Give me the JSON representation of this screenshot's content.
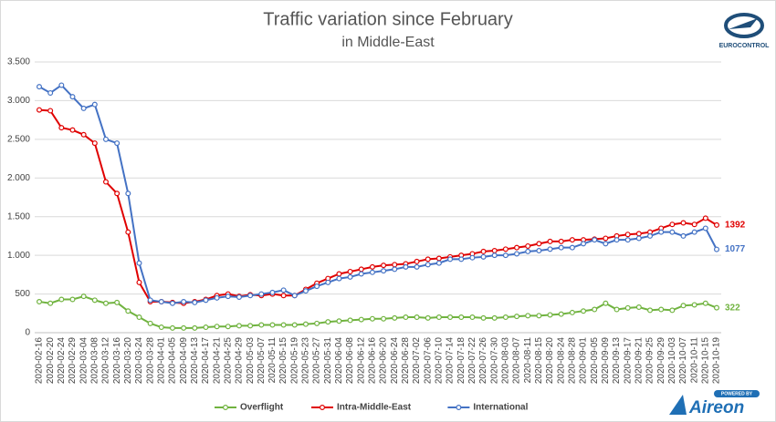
{
  "chart_data": {
    "type": "line",
    "title": "Traffic variation since February",
    "subtitle": "in Middle-East",
    "categories": [
      "2020-02-16",
      "2020-02-20",
      "2020-02-24",
      "2020-02-29",
      "2020-03-04",
      "2020-03-08",
      "2020-03-12",
      "2020-03-16",
      "2020-03-20",
      "2020-03-24",
      "2020-03-28",
      "2020-04-01",
      "2020-04-05",
      "2020-04-09",
      "2020-04-13",
      "2020-04-17",
      "2020-04-21",
      "2020-04-25",
      "2020-04-29",
      "2020-05-03",
      "2020-05-07",
      "2020-05-11",
      "2020-05-15",
      "2020-05-19",
      "2020-05-23",
      "2020-05-27",
      "2020-05-31",
      "2020-06-04",
      "2020-06-08",
      "2020-06-12",
      "2020-06-16",
      "2020-06-20",
      "2020-06-24",
      "2020-06-28",
      "2020-07-02",
      "2020-07-06",
      "2020-07-10",
      "2020-07-14",
      "2020-07-18",
      "2020-07-22",
      "2020-07-26",
      "2020-07-30",
      "2020-08-03",
      "2020-08-07",
      "2020-08-11",
      "2020-08-15",
      "2020-08-20",
      "2020-08-24",
      "2020-08-28",
      "2020-09-01",
      "2020-09-05",
      "2020-09-09",
      "2020-09-13",
      "2020-09-17",
      "2020-09-21",
      "2020-09-25",
      "2020-09-29",
      "2020-10-03",
      "2020-10-07",
      "2020-10-11",
      "2020-10-15",
      "2020-10-19"
    ],
    "series": [
      {
        "name": "Overflight",
        "color": "#70b33f",
        "values": [
          400,
          380,
          430,
          430,
          470,
          420,
          380,
          390,
          280,
          200,
          120,
          70,
          60,
          60,
          60,
          70,
          80,
          80,
          90,
          90,
          100,
          100,
          100,
          100,
          110,
          120,
          140,
          150,
          160,
          170,
          180,
          180,
          190,
          200,
          200,
          190,
          200,
          200,
          200,
          200,
          190,
          190,
          200,
          210,
          220,
          220,
          230,
          240,
          260,
          280,
          300,
          380,
          300,
          320,
          330,
          290,
          300,
          290,
          350,
          360,
          380,
          322
        ]
      },
      {
        "name": "Intra-Middle-East",
        "color": "#e00000",
        "values": [
          2880,
          2870,
          2650,
          2620,
          2560,
          2450,
          1950,
          1800,
          1300,
          650,
          400,
          400,
          390,
          380,
          400,
          430,
          480,
          500,
          470,
          490,
          480,
          500,
          480,
          480,
          560,
          640,
          700,
          760,
          790,
          820,
          850,
          870,
          880,
          890,
          920,
          950,
          960,
          980,
          1000,
          1020,
          1050,
          1060,
          1080,
          1100,
          1120,
          1150,
          1180,
          1180,
          1200,
          1200,
          1210,
          1220,
          1250,
          1270,
          1280,
          1300,
          1350,
          1400,
          1420,
          1400,
          1480,
          1392
        ]
      },
      {
        "name": "International",
        "color": "#4472c4",
        "values": [
          3180,
          3100,
          3200,
          3050,
          2900,
          2950,
          2500,
          2450,
          1800,
          900,
          420,
          400,
          380,
          400,
          390,
          420,
          450,
          470,
          460,
          480,
          500,
          520,
          550,
          480,
          540,
          600,
          650,
          700,
          720,
          760,
          780,
          800,
          820,
          850,
          850,
          880,
          900,
          950,
          950,
          970,
          980,
          1000,
          1000,
          1020,
          1050,
          1060,
          1080,
          1100,
          1100,
          1150,
          1200,
          1150,
          1200,
          1200,
          1220,
          1250,
          1300,
          1300,
          1250,
          1300,
          1350,
          1077
        ]
      }
    ],
    "ylim": [
      0,
      3500
    ],
    "yticks": [
      0,
      500,
      {
        "value": 1000,
        "label": "1.000"
      },
      {
        "value": 1500,
        "label": "1.500"
      },
      {
        "value": 2000,
        "label": "2.000"
      },
      {
        "value": 2500,
        "label": "2.500"
      },
      {
        "value": 3000,
        "label": "3.000"
      },
      {
        "value": 3500,
        "label": "3.500"
      }
    ],
    "grid": true,
    "legend": "bottom"
  },
  "logos": {
    "eurocontrol": "EUROCONTROL",
    "aireon_badge": "POWERED BY",
    "aireon": "Aireon"
  }
}
